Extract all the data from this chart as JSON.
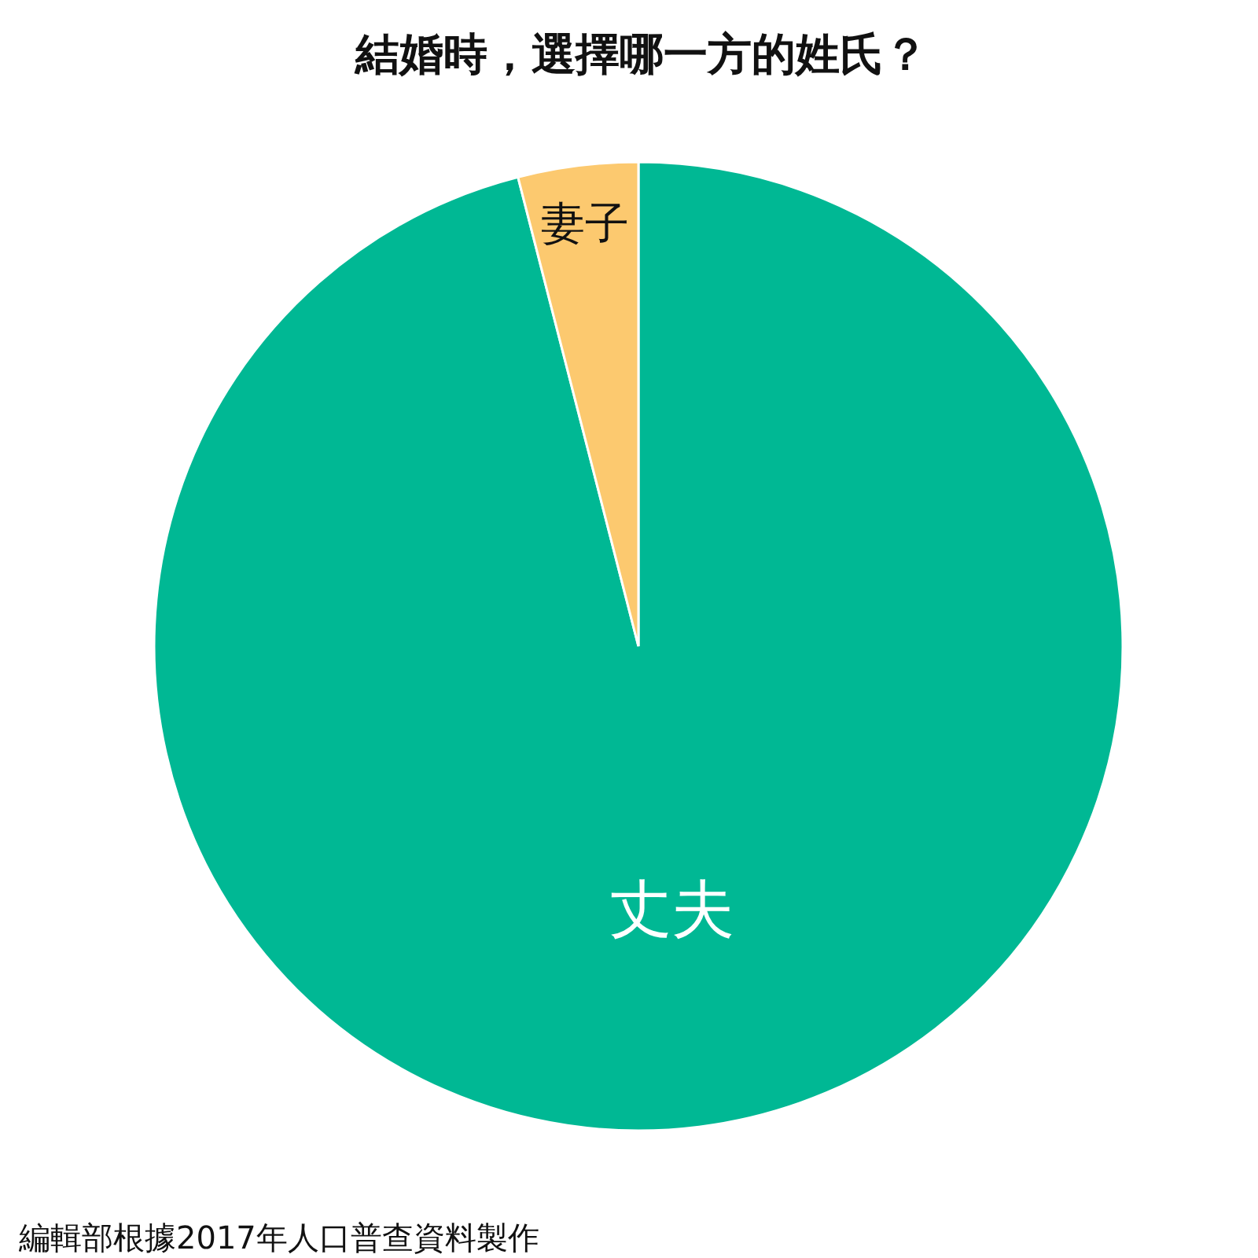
{
  "chart_data": {
    "type": "pie",
    "title": "結婚時，選擇哪一方的姓氏？",
    "categories": [
      "丈夫",
      "妻子"
    ],
    "values": [
      96,
      4
    ],
    "colors": [
      "#00b894",
      "#fcc96f"
    ],
    "legend": false,
    "annotations": [
      "編輯部根據2017年人口普查資料製作"
    ]
  }
}
